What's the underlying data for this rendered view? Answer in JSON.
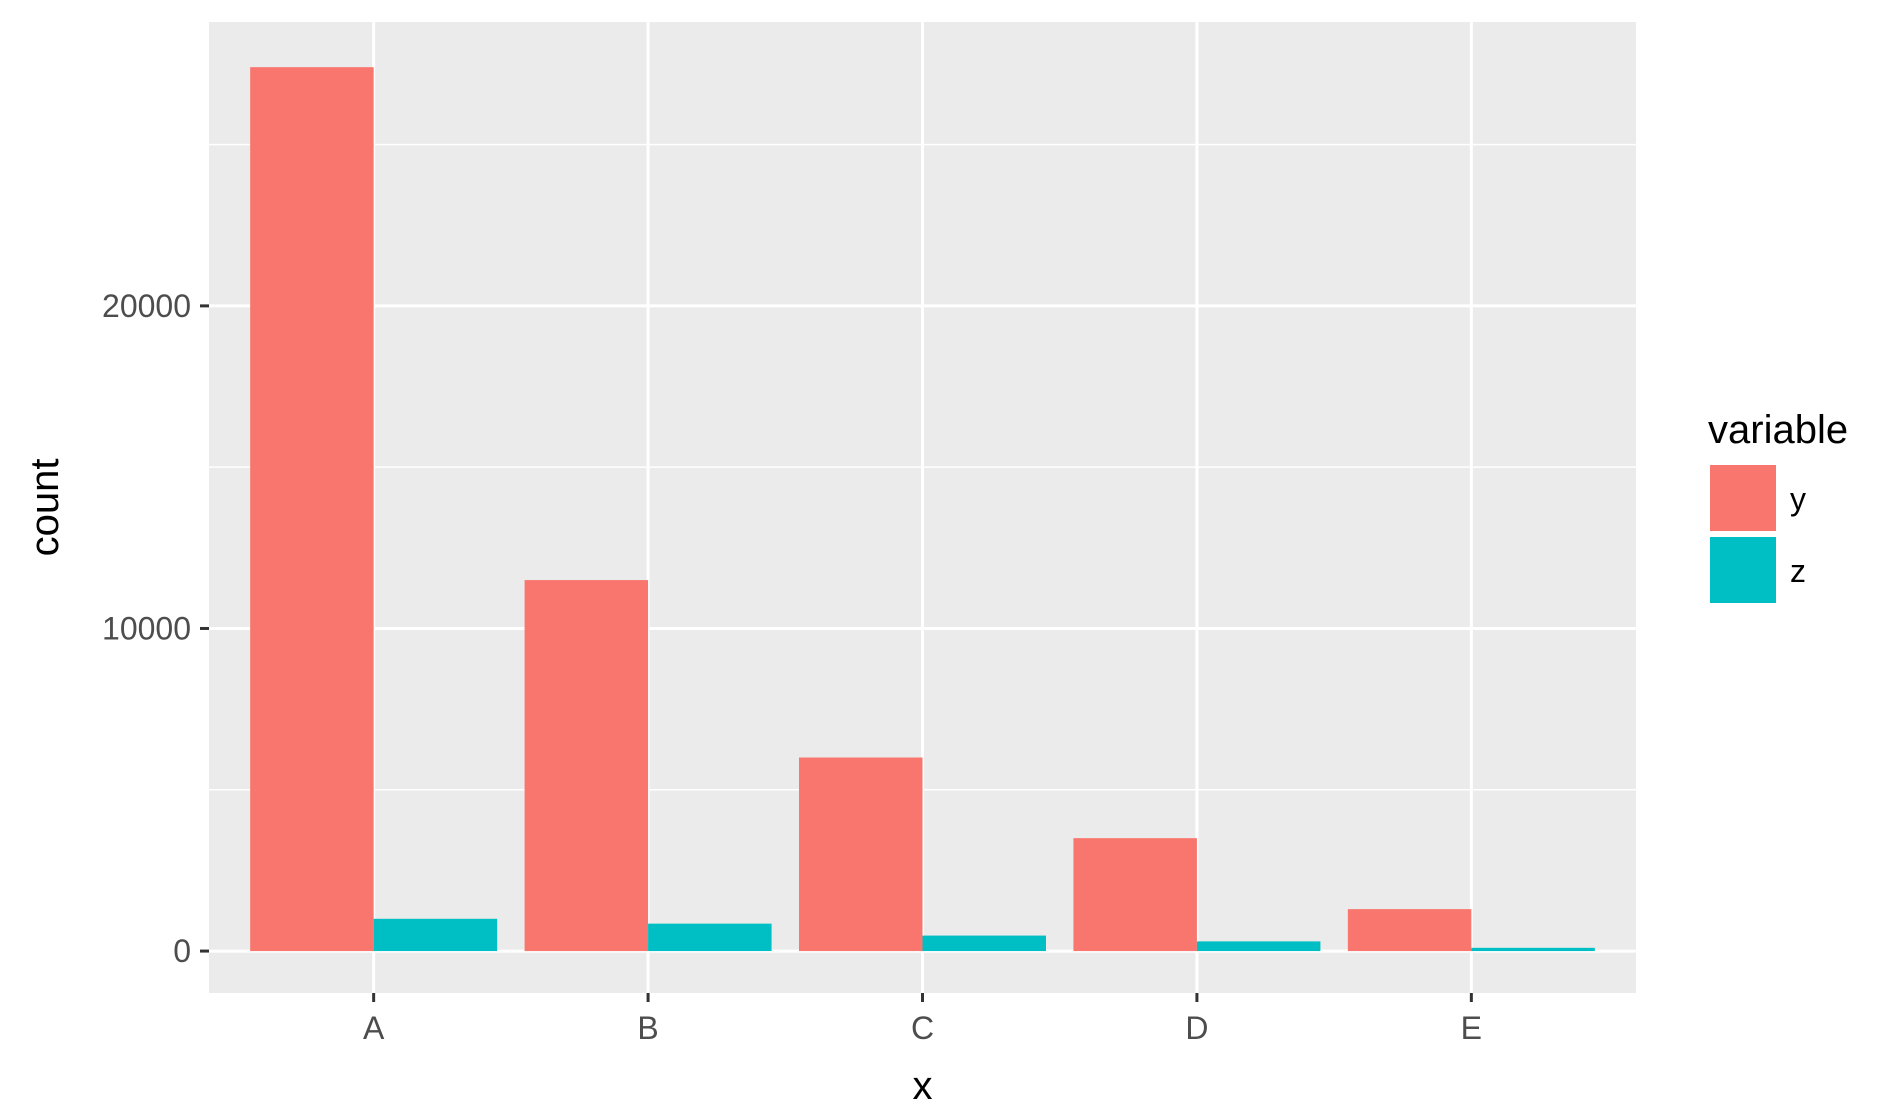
{
  "chart_data": {
    "type": "bar",
    "title": "",
    "xlabel": "x",
    "ylabel": "count",
    "categories": [
      "A",
      "B",
      "C",
      "D",
      "E"
    ],
    "series": [
      {
        "name": "y",
        "values": [
          27400,
          11500,
          6000,
          3500,
          1300
        ],
        "color": "#F8766D"
      },
      {
        "name": "z",
        "values": [
          1000,
          850,
          480,
          300,
          100
        ],
        "color": "#00BFC4"
      }
    ],
    "ylim": [
      -1300,
      28800
    ],
    "yticks": [
      0,
      10000,
      20000
    ],
    "ytick_labels": [
      "0",
      "10000",
      "20000"
    ],
    "grid": true,
    "legend": {
      "title": "variable",
      "position": "right"
    }
  }
}
